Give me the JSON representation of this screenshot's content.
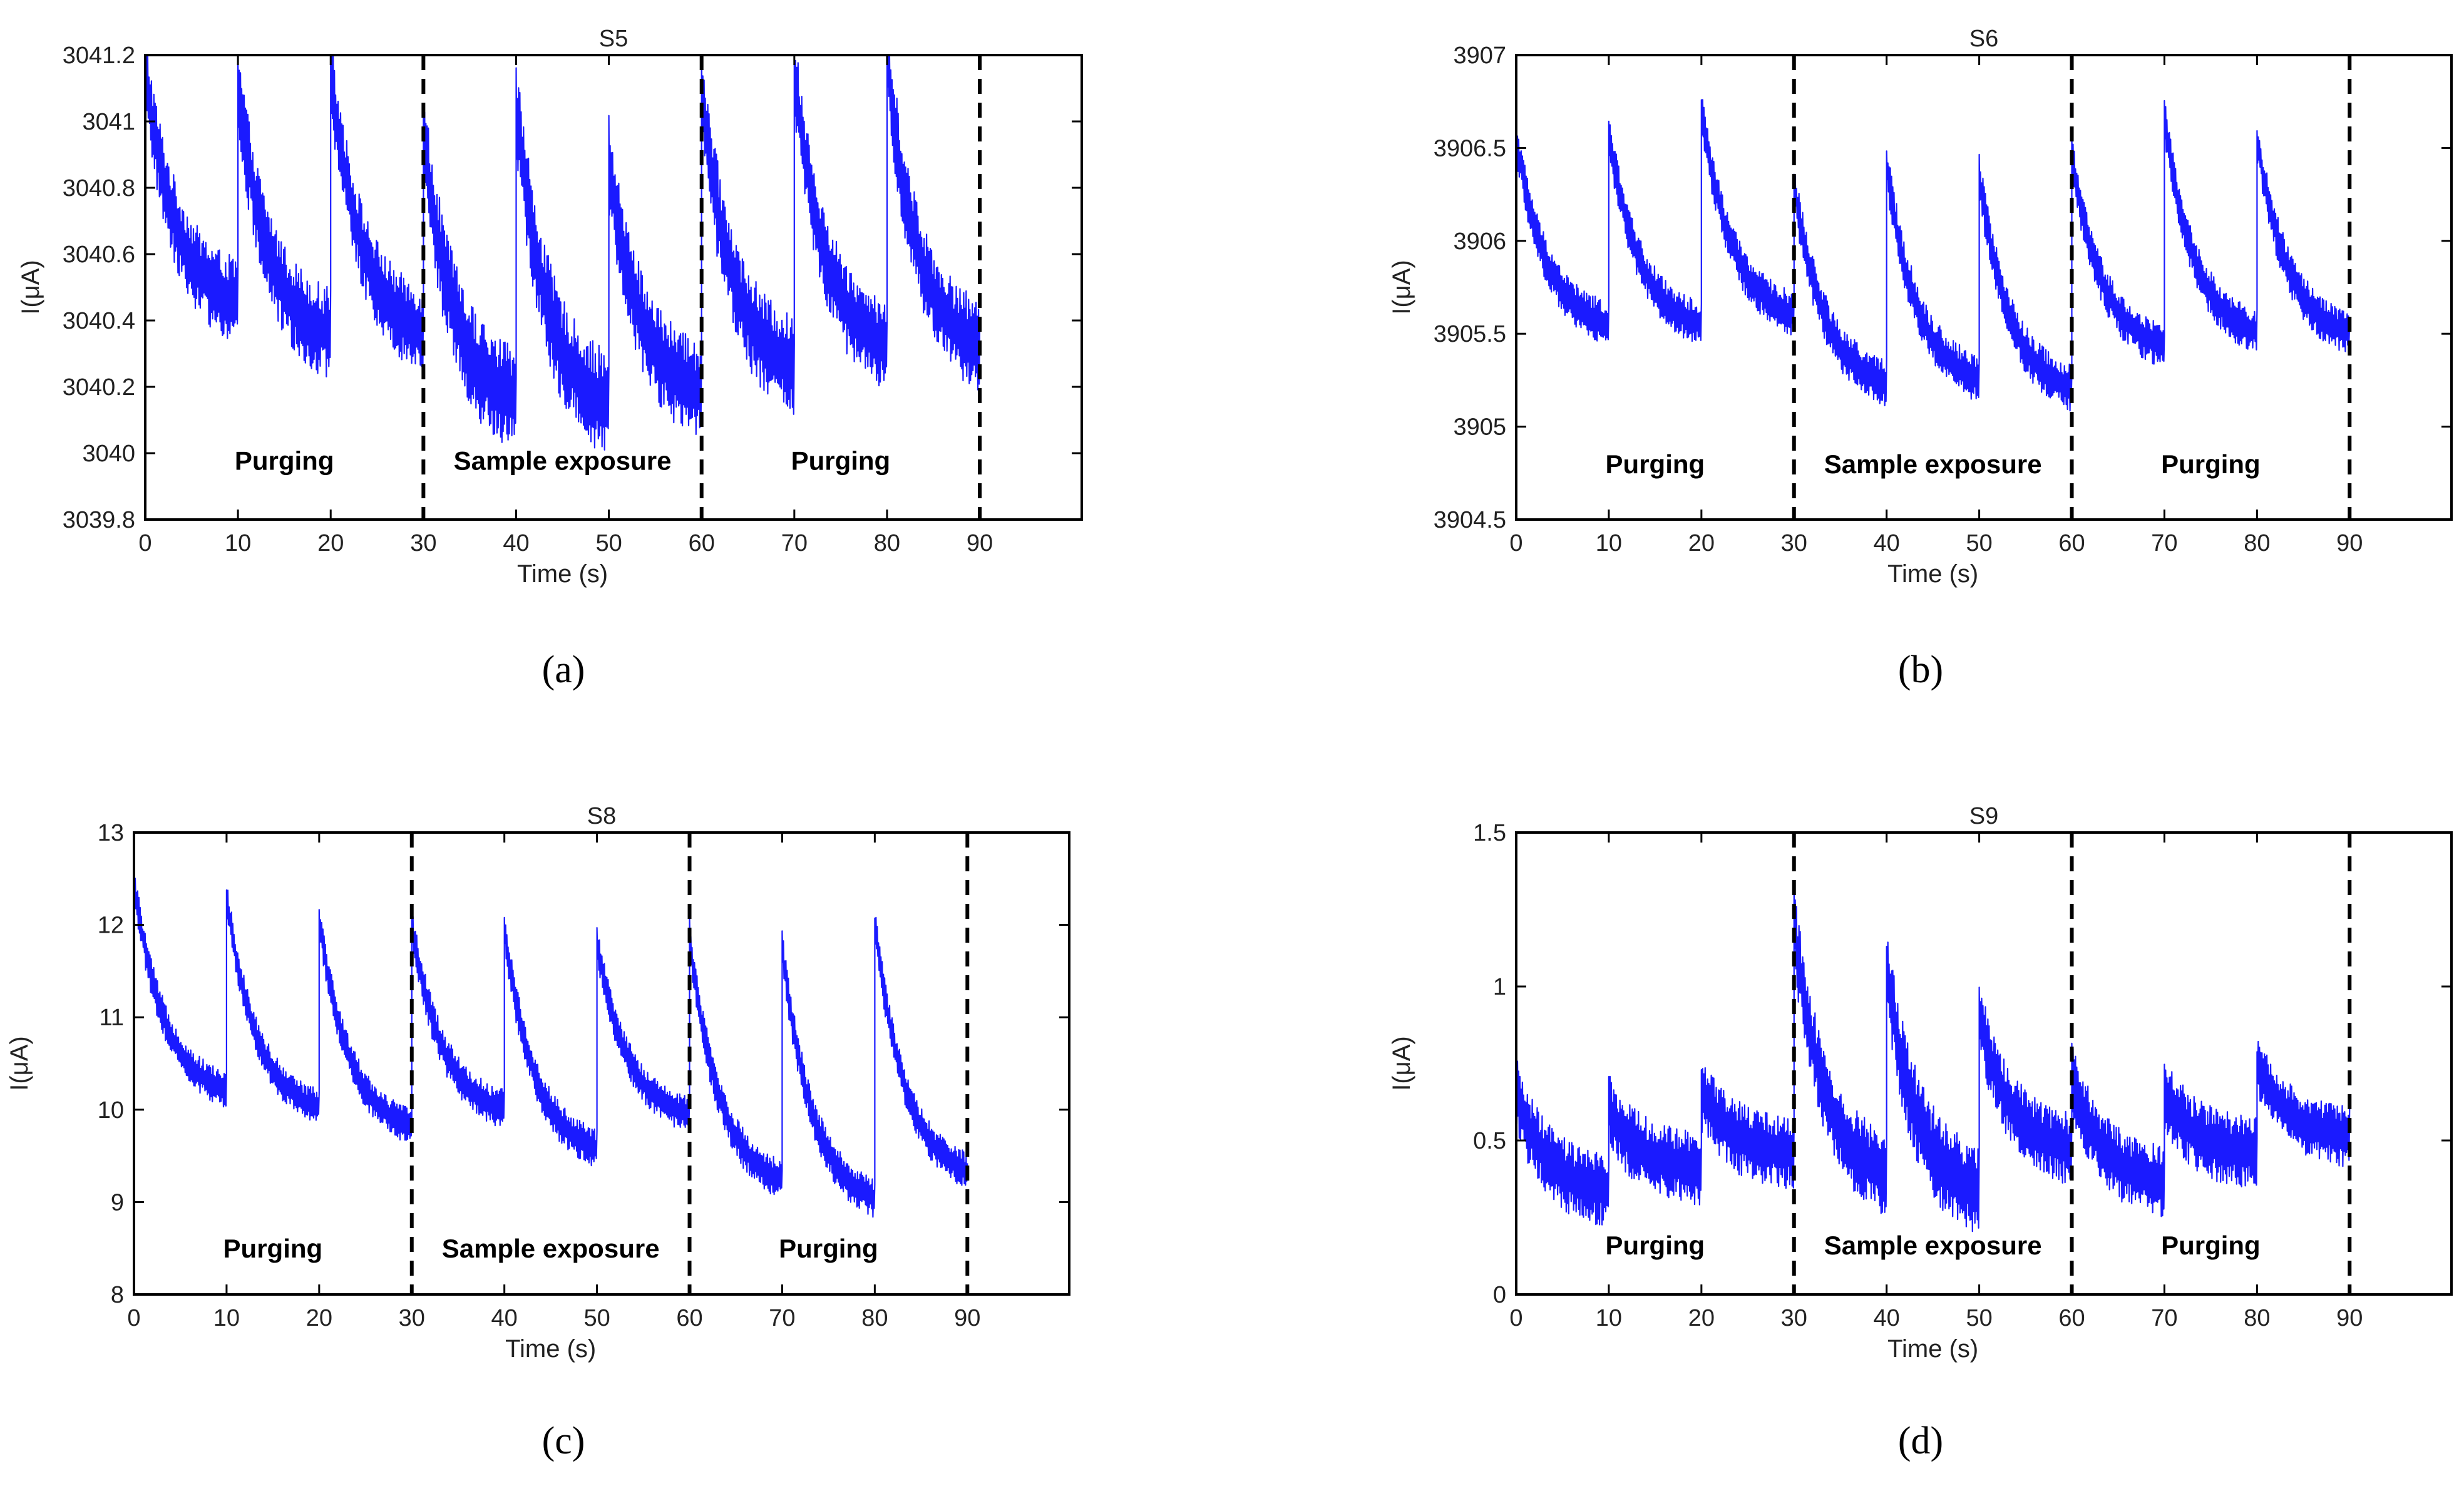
{
  "panels": [
    {
      "letter": "a",
      "caption": "(a)",
      "title": "S5",
      "ylabel": "I(μA)",
      "xlabel": "Time (s)",
      "yticks": [
        "3039.8",
        "3040",
        "3040.2",
        "3040.4",
        "3040.6",
        "3040.8",
        "3041",
        "3041.2"
      ],
      "xticks": [
        "0",
        "10",
        "20",
        "30",
        "40",
        "50",
        "60",
        "70",
        "80",
        "90"
      ],
      "regions": [
        "Purging",
        "Sample exposure",
        "Purging"
      ]
    },
    {
      "letter": "b",
      "caption": "(b)",
      "title": "S6",
      "ylabel": "I(μA)",
      "xlabel": "Time (s)",
      "yticks": [
        "3904.5",
        "3905",
        "3905.5",
        "3906",
        "3906.5",
        "3907"
      ],
      "xticks": [
        "0",
        "10",
        "20",
        "30",
        "40",
        "50",
        "60",
        "70",
        "80",
        "90"
      ],
      "regions": [
        "Purging",
        "Sample exposure",
        "Purging"
      ]
    },
    {
      "letter": "c",
      "caption": "(c)",
      "title": "S8",
      "ylabel": "I(μA)",
      "xlabel": "Time (s)",
      "yticks": [
        "8",
        "9",
        "10",
        "11",
        "12",
        "13"
      ],
      "xticks": [
        "0",
        "10",
        "20",
        "30",
        "40",
        "50",
        "60",
        "70",
        "80",
        "90"
      ],
      "regions": [
        "Purging",
        "Sample exposure",
        "Purging"
      ]
    },
    {
      "letter": "d",
      "caption": "(d)",
      "title": "S9",
      "ylabel": "I(μA)",
      "xlabel": "Time (s)",
      "yticks": [
        "0",
        "0.5",
        "1",
        "1.5"
      ],
      "xticks": [
        "0",
        "10",
        "20",
        "30",
        "40",
        "50",
        "60",
        "70",
        "80",
        "90"
      ],
      "regions": [
        "Purging",
        "Sample exposure",
        "Purging"
      ]
    }
  ],
  "chart_data": [
    {
      "type": "line",
      "title": "S5",
      "xlabel": "Time (s)",
      "ylabel": "I(μA)",
      "xlim": [
        0,
        101
      ],
      "ylim": [
        3039.8,
        3041.2
      ],
      "line_color": "#1a1aff",
      "phase_boundaries": [
        30,
        60,
        90
      ],
      "annotations": [
        {
          "text": "Purging",
          "x": 15,
          "y": 3039.95
        },
        {
          "text": "Sample exposure",
          "x": 45,
          "y": 3039.95
        },
        {
          "text": "Purging",
          "x": 75,
          "y": 3039.95
        }
      ],
      "cycles": [
        {
          "start": 0,
          "end": 10,
          "peak": 3041.15,
          "trough": 3040.42,
          "noise": 0.13
        },
        {
          "start": 10,
          "end": 20,
          "peak": 3041.1,
          "trough": 3040.32,
          "noise": 0.14
        },
        {
          "start": 20,
          "end": 30,
          "peak": 3041.15,
          "trough": 3040.33,
          "noise": 0.13
        },
        {
          "start": 30,
          "end": 40,
          "peak": 3040.95,
          "trough": 3040.12,
          "noise": 0.16
        },
        {
          "start": 40,
          "end": 50,
          "peak": 3041.05,
          "trough": 3040.1,
          "noise": 0.16
        },
        {
          "start": 50,
          "end": 60,
          "peak": 3040.88,
          "trough": 3040.15,
          "noise": 0.15
        },
        {
          "start": 60,
          "end": 70,
          "peak": 3041.08,
          "trough": 3040.22,
          "noise": 0.15
        },
        {
          "start": 70,
          "end": 80,
          "peak": 3041.15,
          "trough": 3040.28,
          "noise": 0.14
        },
        {
          "start": 80,
          "end": 90,
          "peak": 3041.18,
          "trough": 3040.28,
          "noise": 0.14
        }
      ]
    },
    {
      "type": "line",
      "title": "S6",
      "xlabel": "Time (s)",
      "ylabel": "I(μA)",
      "xlim": [
        0,
        101
      ],
      "ylim": [
        3904.5,
        3907
      ],
      "line_color": "#1a1aff",
      "phase_boundaries": [
        30,
        60,
        90
      ],
      "annotations": [
        {
          "text": "Purging",
          "x": 15,
          "y": 3904.75
        },
        {
          "text": "Sample exposure",
          "x": 45,
          "y": 3904.75
        },
        {
          "text": "Purging",
          "x": 75,
          "y": 3904.75
        }
      ],
      "cycles": [
        {
          "start": 0,
          "end": 10,
          "peak": 3906.55,
          "trough": 3905.5,
          "noise": 0.12
        },
        {
          "start": 10,
          "end": 20,
          "peak": 3906.58,
          "trough": 3905.5,
          "noise": 0.12
        },
        {
          "start": 20,
          "end": 30,
          "peak": 3906.7,
          "trough": 3905.55,
          "noise": 0.12
        },
        {
          "start": 30,
          "end": 40,
          "peak": 3906.3,
          "trough": 3905.18,
          "noise": 0.13
        },
        {
          "start": 40,
          "end": 50,
          "peak": 3906.4,
          "trough": 3905.2,
          "noise": 0.13
        },
        {
          "start": 50,
          "end": 60,
          "peak": 3906.35,
          "trough": 3905.15,
          "noise": 0.13
        },
        {
          "start": 60,
          "end": 70,
          "peak": 3906.45,
          "trough": 3905.38,
          "noise": 0.12
        },
        {
          "start": 70,
          "end": 80,
          "peak": 3906.65,
          "trough": 3905.45,
          "noise": 0.12
        },
        {
          "start": 80,
          "end": 90,
          "peak": 3906.55,
          "trough": 3905.45,
          "noise": 0.12
        }
      ]
    },
    {
      "type": "line",
      "title": "S8",
      "xlabel": "Time (s)",
      "ylabel": "I(μA)",
      "xlim": [
        0,
        101
      ],
      "ylim": [
        8,
        13
      ],
      "line_color": "#1a1aff",
      "phase_boundaries": [
        30,
        60,
        90
      ],
      "annotations": [
        {
          "text": "Purging",
          "x": 15,
          "y": 8.4
        },
        {
          "text": "Sample exposure",
          "x": 45,
          "y": 8.4
        },
        {
          "text": "Purging",
          "x": 75,
          "y": 8.4
        }
      ],
      "cycles": [
        {
          "start": 0,
          "end": 10,
          "peak": 12.45,
          "trough": 10.1,
          "noise": 0.2
        },
        {
          "start": 10,
          "end": 20,
          "peak": 12.3,
          "trough": 9.9,
          "noise": 0.2
        },
        {
          "start": 20,
          "end": 30,
          "peak": 12.05,
          "trough": 9.7,
          "noise": 0.2
        },
        {
          "start": 30,
          "end": 40,
          "peak": 12.0,
          "trough": 9.9,
          "noise": 0.22
        },
        {
          "start": 40,
          "end": 50,
          "peak": 11.95,
          "trough": 9.45,
          "noise": 0.22
        },
        {
          "start": 50,
          "end": 60,
          "peak": 11.8,
          "trough": 9.85,
          "noise": 0.2
        },
        {
          "start": 60,
          "end": 70,
          "peak": 11.85,
          "trough": 9.1,
          "noise": 0.22
        },
        {
          "start": 70,
          "end": 80,
          "peak": 11.75,
          "trough": 8.9,
          "noise": 0.22
        },
        {
          "start": 80,
          "end": 90,
          "peak": 12.0,
          "trough": 9.2,
          "noise": 0.2
        }
      ]
    },
    {
      "type": "line",
      "title": "S9",
      "xlabel": "Time (s)",
      "ylabel": "I(μA)",
      "xlim": [
        0,
        101
      ],
      "ylim": [
        0,
        1.5
      ],
      "line_color": "#1a1aff",
      "phase_boundaries": [
        30,
        60,
        90
      ],
      "annotations": [
        {
          "text": "Purging",
          "x": 15,
          "y": 0.13
        },
        {
          "text": "Sample exposure",
          "x": 45,
          "y": 0.13
        },
        {
          "text": "Purging",
          "x": 75,
          "y": 0.13
        }
      ],
      "cycles": [
        {
          "start": 0,
          "end": 10,
          "peak": 0.65,
          "trough": 0.32,
          "noise": 0.12
        },
        {
          "start": 10,
          "end": 20,
          "peak": 0.6,
          "trough": 0.4,
          "noise": 0.12
        },
        {
          "start": 20,
          "end": 30,
          "peak": 0.65,
          "trough": 0.45,
          "noise": 0.12
        },
        {
          "start": 30,
          "end": 40,
          "peak": 1.2,
          "trough": 0.35,
          "noise": 0.14
        },
        {
          "start": 40,
          "end": 50,
          "peak": 1.05,
          "trough": 0.3,
          "noise": 0.15
        },
        {
          "start": 50,
          "end": 60,
          "peak": 0.9,
          "trough": 0.45,
          "noise": 0.12
        },
        {
          "start": 60,
          "end": 70,
          "peak": 0.7,
          "trough": 0.35,
          "noise": 0.12
        },
        {
          "start": 70,
          "end": 80,
          "peak": 0.65,
          "trough": 0.45,
          "noise": 0.12
        },
        {
          "start": 80,
          "end": 90,
          "peak": 0.75,
          "trough": 0.5,
          "noise": 0.1
        }
      ]
    }
  ]
}
